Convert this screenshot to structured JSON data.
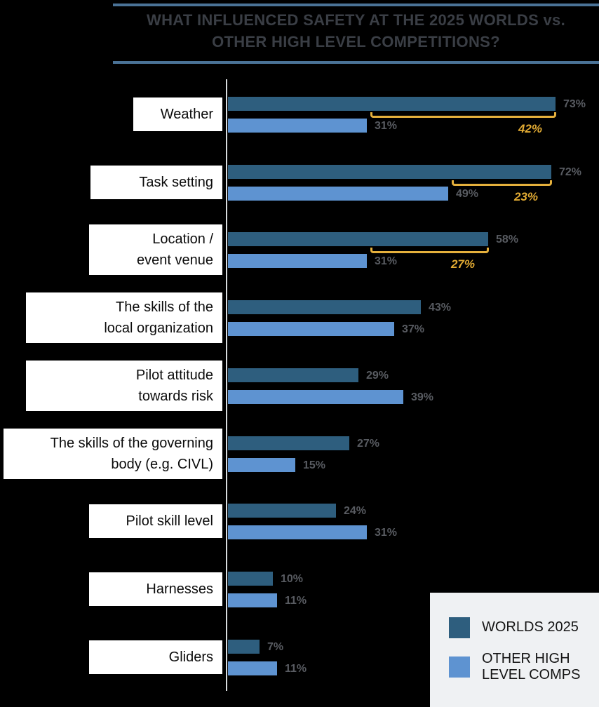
{
  "title": {
    "line1": "WHAT INFLUENCED SAFETY AT THE 2025 WORLDS vs.",
    "line2": "OTHER HIGH LEVEL COMPETITIONS?"
  },
  "legend": {
    "items": [
      {
        "label": "WORLDS 2025",
        "color": "#2E5E7E"
      },
      {
        "label": "OTHER HIGH LEVEL COMPS",
        "color": "#5E93D1"
      }
    ]
  },
  "colors": {
    "background": "#000000",
    "series_dark": "#2E5E7E",
    "series_light": "#5E93D1",
    "bracket": "#E5B03C",
    "difference_text": "#E2AB33",
    "value_text": "#585B61",
    "axis_line": "#D8DCDE",
    "title_text": "#3A3E45",
    "title_rule": "#4A7296",
    "label_box": "#FFFFFF",
    "legend_background": "#EFF1F3"
  },
  "chart_data": {
    "type": "bar",
    "orientation": "horizontal",
    "title": "WHAT INFLUENCED SAFETY AT THE 2025 WORLDS vs. OTHER HIGH LEVEL COMPETITIONS?",
    "unit": "%",
    "xlim": [
      0,
      100
    ],
    "grid": false,
    "legend_position": "bottom-right",
    "categories": [
      "Weather",
      "Task setting",
      "Location / event venue",
      "The skills of the local organization",
      "Pilot attitude towards risk",
      "The skills of the governing body (e.g. CIVL)",
      "Pilot skill level",
      "Harnesses",
      "Gliders"
    ],
    "category_label_lines": [
      [
        "Weather"
      ],
      [
        "Task setting"
      ],
      [
        "Location /",
        "event venue"
      ],
      [
        "The skills of the",
        "local organization"
      ],
      [
        "Pilot attitude",
        "towards risk"
      ],
      [
        "The skills of the governing",
        "body (e.g. CIVL)"
      ],
      [
        "Pilot skill level"
      ],
      [
        "Harnesses"
      ],
      [
        "Gliders"
      ]
    ],
    "series": [
      {
        "name": "WORLDS 2025",
        "color": "#2E5E7E",
        "values": [
          73,
          72,
          58,
          43,
          29,
          27,
          24,
          10,
          7
        ]
      },
      {
        "name": "OTHER HIGH LEVEL COMPS",
        "color": "#5E93D1",
        "values": [
          31,
          49,
          31,
          37,
          39,
          15,
          31,
          11,
          11
        ]
      }
    ],
    "value_labels": {
      "WORLDS 2025": [
        "73%",
        "72%",
        "58%",
        "43%",
        "29%",
        "27%",
        "24%",
        "10%",
        "7%"
      ],
      "OTHER HIGH LEVEL COMPS": [
        "31%",
        "49%",
        "31%",
        "37%",
        "39%",
        "15%",
        "31%",
        "11%",
        "11%"
      ]
    },
    "difference_annotations": [
      {
        "category": "Weather",
        "category_index": 0,
        "value": 42,
        "label": "42%"
      },
      {
        "category": "Task setting",
        "category_index": 1,
        "value": 23,
        "label": "23%"
      },
      {
        "category": "Location / event venue",
        "category_index": 2,
        "value": 27,
        "label": "27%"
      }
    ]
  }
}
